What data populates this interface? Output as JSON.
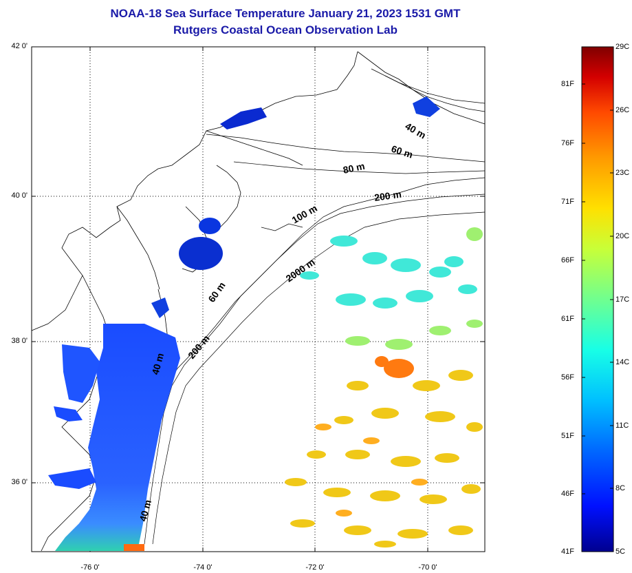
{
  "title": {
    "line1": "NOAA-18 Sea Surface Temperature January 21, 2023 1531 GMT",
    "line2": "Rutgers Coastal Ocean Observation Lab"
  },
  "map": {
    "lat_ticks": [
      "42 0'",
      "40 0'",
      "38 0'",
      "36 0'"
    ],
    "lon_ticks": [
      "-76 0'",
      "-74 0'",
      "-72 0'",
      "-70 0'"
    ],
    "lat_range": [
      35,
      42
    ],
    "lon_range": [
      -77,
      -69
    ],
    "ocean_color": "#ffffff",
    "land_line_color": "#000000"
  },
  "isobaths": [
    {
      "label": "40 m"
    },
    {
      "label": "60 m"
    },
    {
      "label": "80 m"
    },
    {
      "label": "100 m"
    },
    {
      "label": "200 m"
    },
    {
      "label": "2000 m"
    }
  ],
  "colorbar": {
    "left_labels": [
      "81F",
      "76F",
      "71F",
      "66F",
      "61F",
      "56F",
      "51F",
      "46F",
      "41F"
    ],
    "right_labels": [
      "29C",
      "26C",
      "23C",
      "20C",
      "17C",
      "14C",
      "11C",
      "8C",
      "5C"
    ],
    "colors": [
      "#800000",
      "#d40000",
      "#ff4a00",
      "#ff9a00",
      "#ffe000",
      "#c8ff38",
      "#70ff8f",
      "#18ffe6",
      "#00c0ff",
      "#0068ff",
      "#0010ff",
      "#00008f"
    ]
  }
}
